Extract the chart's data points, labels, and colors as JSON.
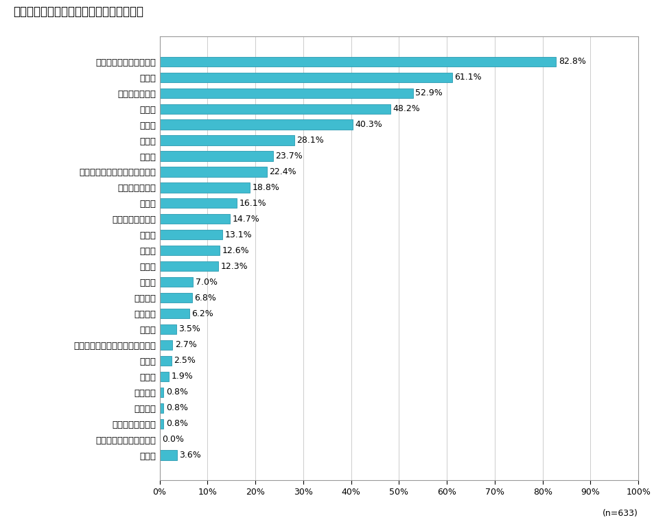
{
  "title": "《企業が選考するに際して重視した項目》",
  "title_raw": "【企業が選考するに際して重視した項目】",
  "categories": [
    "その他",
    "インターンシップ受講歴",
    "所属ゼミ／研究室",
    "保有資格",
    "留学経験",
    "感受性",
    "倫理観",
    "クラブ活動／ボランティア活動歴",
    "出身校",
    "学業成績",
    "一般常識",
    "語学力",
    "信頼性",
    "創造性",
    "専門性",
    "職業観・就労意識",
    "柔軟性",
    "リーダーシップ",
    "潜在的可能性（ポテンシャル）",
    "論理性",
    "責任感",
    "誠実性",
    "協調性",
    "チャレンジ精神",
    "主体性",
    "コミュニケーション能力"
  ],
  "values": [
    3.6,
    0.0,
    0.8,
    0.8,
    0.8,
    1.9,
    2.5,
    2.7,
    3.5,
    6.2,
    6.8,
    7.0,
    12.3,
    12.6,
    13.1,
    14.7,
    16.1,
    18.8,
    22.4,
    23.7,
    28.1,
    40.3,
    48.2,
    52.9,
    61.1,
    82.8
  ],
  "bar_color": "#40BCD0",
  "bar_edge_color": "#2A9AB0",
  "background_color": "#ffffff",
  "title_fontsize": 12,
  "label_fontsize": 9.5,
  "value_fontsize": 9,
  "note": "(n=633)",
  "xlim": [
    0,
    100
  ],
  "xticks": [
    0,
    10,
    20,
    30,
    40,
    50,
    60,
    70,
    80,
    90,
    100
  ],
  "xtick_labels": [
    "0%",
    "10%",
    "20%",
    "30%",
    "40%",
    "50%",
    "60%",
    "70%",
    "80%",
    "90%",
    "100%"
  ]
}
